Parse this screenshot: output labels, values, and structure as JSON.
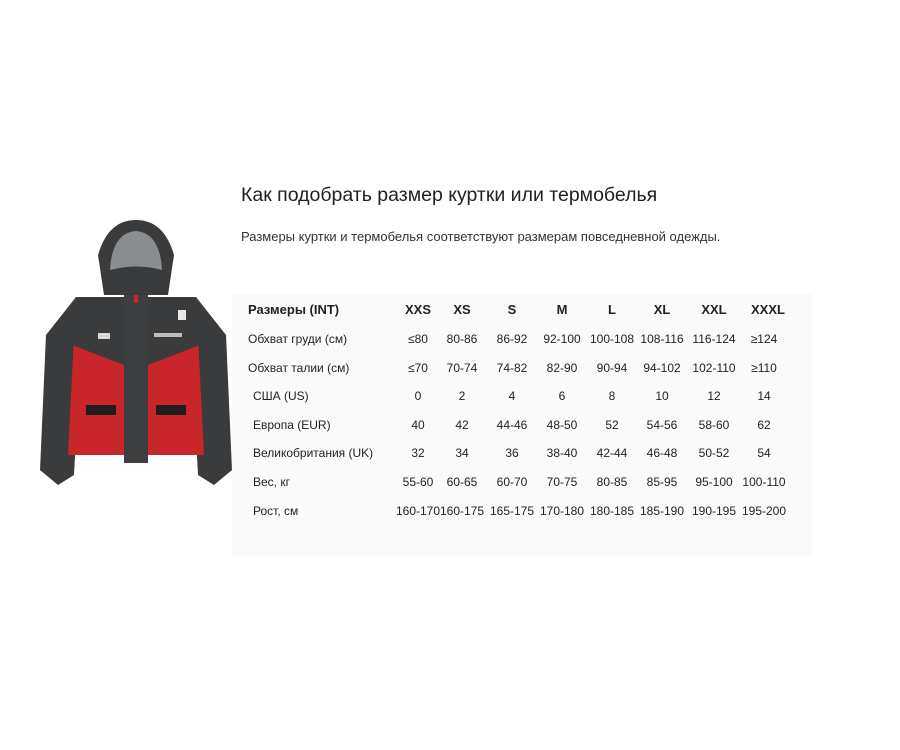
{
  "heading": {
    "title": "Как подобрать размер куртки или термобелья",
    "subtitle": "Размеры куртки и термобелья соответствуют размерам повседневной одежды."
  },
  "product_image": {
    "description_icon": "jacket-image",
    "colors": {
      "red": "#c8262a",
      "dark": "#3a3b3d"
    }
  },
  "size_table": {
    "header": {
      "label": "Размеры (INT)",
      "sizes": [
        "XXS",
        "XS",
        "S",
        "M",
        "L",
        "XL",
        "XXL",
        "XXXL"
      ]
    },
    "rows": [
      {
        "label": "Обхват груди (см)",
        "values": [
          "≤80",
          "80-86",
          "86-92",
          "92-100",
          "100-108",
          "108-116",
          "116-124",
          "≥124"
        ]
      },
      {
        "label": "Обхват талии (см)",
        "values": [
          "≤70",
          "70-74",
          "74-82",
          "82-90",
          "90-94",
          "94-102",
          "102-110",
          "≥110"
        ]
      },
      {
        "label": "США (US)",
        "values": [
          "0",
          "2",
          "4",
          "6",
          "8",
          "10",
          "12",
          "14"
        ]
      },
      {
        "label": "Европа (EUR)",
        "values": [
          "40",
          "42",
          "44-46",
          "48-50",
          "52",
          "54-56",
          "58-60",
          "62"
        ]
      },
      {
        "label": "Великобритания (UK)",
        "values": [
          "32",
          "34",
          "36",
          "38-40",
          "42-44",
          "46-48",
          "50-52",
          "54"
        ]
      },
      {
        "label": "Вес, кг",
        "values": [
          "55-60",
          "60-65",
          "60-70",
          "70-75",
          "80-85",
          "85-95",
          "95-100",
          "100-110"
        ]
      },
      {
        "label": "Рост, см",
        "values": [
          "160-170",
          "160-175",
          "165-175",
          "170-180",
          "180-185",
          "185-190",
          "190-195",
          "195-200"
        ]
      }
    ]
  }
}
